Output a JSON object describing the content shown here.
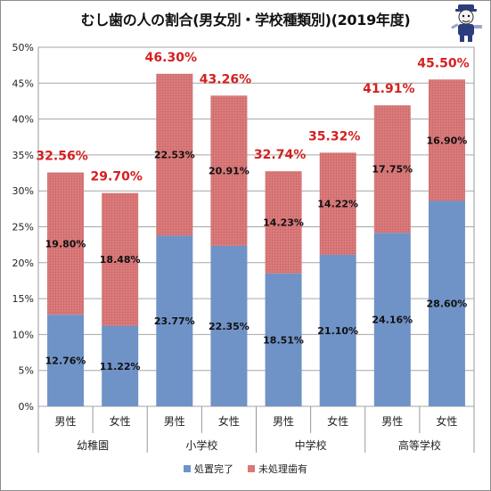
{
  "chart_data": {
    "type": "bar",
    "stacked": true,
    "title": "むし歯の人の割合(男女別・学校種類別)(2019年度)",
    "groups": [
      {
        "name": "幼稚園",
        "categories": [
          "男性",
          "女性"
        ]
      },
      {
        "name": "小学校",
        "categories": [
          "男性",
          "女性"
        ]
      },
      {
        "name": "中学校",
        "categories": [
          "男性",
          "女性"
        ]
      },
      {
        "name": "高等学校",
        "categories": [
          "男性",
          "女性"
        ]
      }
    ],
    "series": [
      {
        "name": "処置完了",
        "color": "#6f93c7",
        "values": [
          12.76,
          11.22,
          23.77,
          22.35,
          18.51,
          21.1,
          24.16,
          28.6
        ],
        "labels": [
          "12.76%",
          "11.22%",
          "23.77%",
          "22.35%",
          "18.51%",
          "21.10%",
          "24.16%",
          "28.60%"
        ]
      },
      {
        "name": "未処理歯有",
        "color": "#d9797a",
        "values": [
          19.8,
          18.48,
          22.53,
          20.91,
          14.23,
          14.22,
          17.75,
          16.9
        ],
        "labels": [
          "19.80%",
          "18.48%",
          "22.53%",
          "20.91%",
          "14.23%",
          "14.22%",
          "17.75%",
          "16.90%"
        ]
      }
    ],
    "totals": [
      32.56,
      29.7,
      46.3,
      43.26,
      32.74,
      35.32,
      41.91,
      45.5
    ],
    "total_labels": [
      "32.56%",
      "29.70%",
      "46.30%",
      "43.26%",
      "32.74%",
      "35.32%",
      "41.91%",
      "45.50%"
    ],
    "total_label_color": "#d42020",
    "ylim": [
      0,
      50
    ],
    "yticks": [
      "0%",
      "5%",
      "10%",
      "15%",
      "20%",
      "25%",
      "30%",
      "35%",
      "40%",
      "45%",
      "50%"
    ],
    "xlabel": "",
    "ylabel": "",
    "grid": true,
    "legend_position": "bottom"
  }
}
